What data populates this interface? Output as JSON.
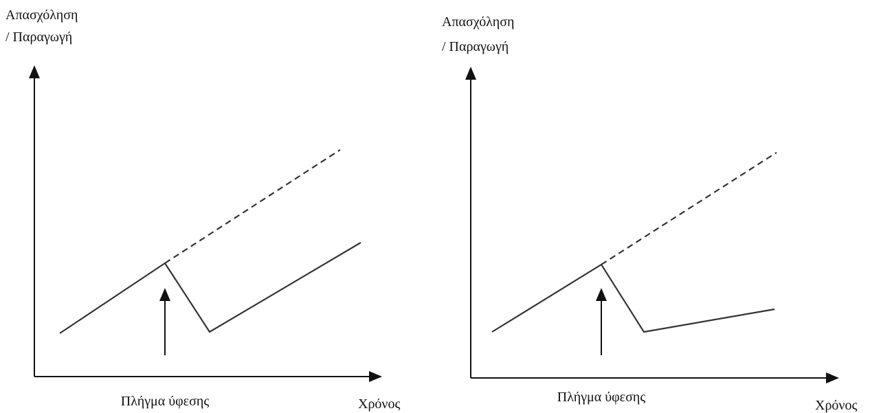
{
  "panels": [
    {
      "y_label": [
        "Απασχόληση",
        "/ Παραγωγή"
      ],
      "annotation": "Πλήγμα ύφεσης",
      "x_label": "Χρόνος"
    },
    {
      "y_label": [
        "Απασχόληση",
        "/ Παραγωγή"
      ],
      "annotation": "Πλήγμα ύφεσης",
      "x_label": "Χρόνος"
    }
  ]
}
